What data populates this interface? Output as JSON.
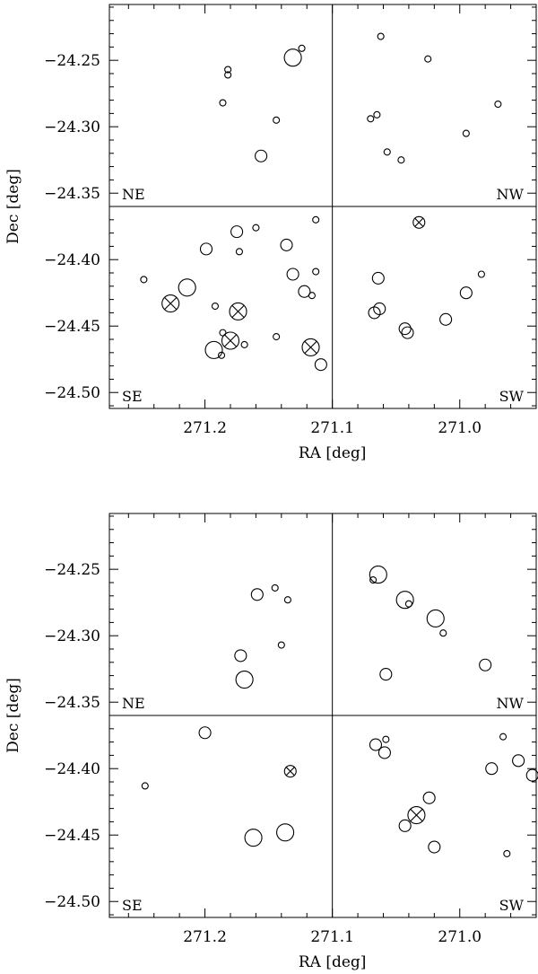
{
  "chart_data": [
    {
      "type": "scatter",
      "title": "",
      "xlabel": "RA [deg]",
      "ylabel": "Dec [deg]",
      "xlim": [
        271.275,
        270.94
      ],
      "ylim": [
        -24.512,
        -24.208
      ],
      "x_ticklabels": [
        {
          "value": 271.2,
          "label": "271.2"
        },
        {
          "value": 271.1,
          "label": "271.1"
        },
        {
          "value": 271.0,
          "label": "271.0"
        }
      ],
      "y_ticklabels": [
        {
          "value": -24.25,
          "label": "−24.25"
        },
        {
          "value": -24.3,
          "label": "−24.30"
        },
        {
          "value": -24.35,
          "label": "−24.35"
        },
        {
          "value": -24.4,
          "label": "−24.40"
        },
        {
          "value": -24.45,
          "label": "−24.45"
        },
        {
          "value": -24.5,
          "label": "−24.50"
        }
      ],
      "divider": {
        "ra": 271.1,
        "dec": -24.36
      },
      "quadrants": {
        "ne": "NE",
        "nw": "NW",
        "se": "SE",
        "sw": "SW"
      },
      "points": [
        {
          "ra": 271.131,
          "dec": -24.248,
          "size": "large"
        },
        {
          "ra": 271.124,
          "dec": -24.241,
          "size": "small"
        },
        {
          "ra": 271.182,
          "dec": -24.257,
          "size": "small"
        },
        {
          "ra": 271.182,
          "dec": -24.261,
          "size": "small"
        },
        {
          "ra": 271.186,
          "dec": -24.282,
          "size": "small"
        },
        {
          "ra": 271.144,
          "dec": -24.295,
          "size": "small"
        },
        {
          "ra": 271.156,
          "dec": -24.322,
          "size": "medium"
        },
        {
          "ra": 271.062,
          "dec": -24.232,
          "size": "small"
        },
        {
          "ra": 271.025,
          "dec": -24.249,
          "size": "small"
        },
        {
          "ra": 271.07,
          "dec": -24.294,
          "size": "small"
        },
        {
          "ra": 271.065,
          "dec": -24.291,
          "size": "small"
        },
        {
          "ra": 271.057,
          "dec": -24.319,
          "size": "small"
        },
        {
          "ra": 271.046,
          "dec": -24.325,
          "size": "small"
        },
        {
          "ra": 270.995,
          "dec": -24.305,
          "size": "small"
        },
        {
          "ra": 270.97,
          "dec": -24.283,
          "size": "small"
        },
        {
          "ra": 271.113,
          "dec": -24.37,
          "size": "small"
        },
        {
          "ra": 271.175,
          "dec": -24.379,
          "size": "medium"
        },
        {
          "ra": 271.16,
          "dec": -24.376,
          "size": "small"
        },
        {
          "ra": 271.199,
          "dec": -24.392,
          "size": "medium"
        },
        {
          "ra": 271.173,
          "dec": -24.394,
          "size": "small"
        },
        {
          "ra": 271.136,
          "dec": -24.389,
          "size": "medium"
        },
        {
          "ra": 271.131,
          "dec": -24.411,
          "size": "medium"
        },
        {
          "ra": 271.113,
          "dec": -24.409,
          "size": "small"
        },
        {
          "ra": 271.248,
          "dec": -24.415,
          "size": "small"
        },
        {
          "ra": 271.214,
          "dec": -24.421,
          "size": "large"
        },
        {
          "ra": 271.122,
          "dec": -24.424,
          "size": "medium"
        },
        {
          "ra": 271.116,
          "dec": -24.427,
          "size": "small"
        },
        {
          "ra": 271.227,
          "dec": -24.433,
          "size": "large",
          "crossed": true
        },
        {
          "ra": 271.192,
          "dec": -24.435,
          "size": "small"
        },
        {
          "ra": 271.174,
          "dec": -24.439,
          "size": "large",
          "crossed": true
        },
        {
          "ra": 271.144,
          "dec": -24.458,
          "size": "small"
        },
        {
          "ra": 271.186,
          "dec": -24.455,
          "size": "small"
        },
        {
          "ra": 271.18,
          "dec": -24.461,
          "size": "large",
          "crossed": true
        },
        {
          "ra": 271.169,
          "dec": -24.464,
          "size": "small"
        },
        {
          "ra": 271.193,
          "dec": -24.468,
          "size": "large"
        },
        {
          "ra": 271.187,
          "dec": -24.472,
          "size": "small"
        },
        {
          "ra": 271.117,
          "dec": -24.466,
          "size": "large",
          "crossed": true
        },
        {
          "ra": 271.109,
          "dec": -24.479,
          "size": "medium"
        },
        {
          "ra": 271.032,
          "dec": -24.372,
          "size": "medium",
          "crossed": true
        },
        {
          "ra": 271.064,
          "dec": -24.414,
          "size": "medium"
        },
        {
          "ra": 270.983,
          "dec": -24.411,
          "size": "small"
        },
        {
          "ra": 270.995,
          "dec": -24.425,
          "size": "medium"
        },
        {
          "ra": 271.063,
          "dec": -24.437,
          "size": "medium"
        },
        {
          "ra": 271.067,
          "dec": -24.44,
          "size": "medium"
        },
        {
          "ra": 271.011,
          "dec": -24.445,
          "size": "medium"
        },
        {
          "ra": 271.043,
          "dec": -24.452,
          "size": "medium"
        },
        {
          "ra": 271.041,
          "dec": -24.455,
          "size": "medium"
        }
      ]
    },
    {
      "type": "scatter",
      "title": "",
      "xlabel": "RA [deg]",
      "ylabel": "Dec [deg]",
      "xlim": [
        271.275,
        270.94
      ],
      "ylim": [
        -24.512,
        -24.208
      ],
      "x_ticklabels": [
        {
          "value": 271.2,
          "label": "271.2"
        },
        {
          "value": 271.1,
          "label": "271.1"
        },
        {
          "value": 271.0,
          "label": "271.0"
        }
      ],
      "y_ticklabels": [
        {
          "value": -24.25,
          "label": "−24.25"
        },
        {
          "value": -24.3,
          "label": "−24.30"
        },
        {
          "value": -24.35,
          "label": "−24.35"
        },
        {
          "value": -24.4,
          "label": "−24.40"
        },
        {
          "value": -24.45,
          "label": "−24.45"
        },
        {
          "value": -24.5,
          "label": "−24.50"
        }
      ],
      "divider": {
        "ra": 271.1,
        "dec": -24.36
      },
      "quadrants": {
        "ne": "NE",
        "nw": "NW",
        "se": "SE",
        "sw": "SW"
      },
      "points": [
        {
          "ra": 271.159,
          "dec": -24.269,
          "size": "medium"
        },
        {
          "ra": 271.145,
          "dec": -24.264,
          "size": "small"
        },
        {
          "ra": 271.135,
          "dec": -24.273,
          "size": "small"
        },
        {
          "ra": 271.14,
          "dec": -24.307,
          "size": "small"
        },
        {
          "ra": 271.172,
          "dec": -24.315,
          "size": "medium"
        },
        {
          "ra": 271.169,
          "dec": -24.333,
          "size": "large"
        },
        {
          "ra": 271.068,
          "dec": -24.258,
          "size": "small"
        },
        {
          "ra": 271.064,
          "dec": -24.254,
          "size": "large"
        },
        {
          "ra": 271.043,
          "dec": -24.273,
          "size": "large"
        },
        {
          "ra": 271.04,
          "dec": -24.276,
          "size": "small"
        },
        {
          "ra": 271.019,
          "dec": -24.287,
          "size": "large"
        },
        {
          "ra": 271.013,
          "dec": -24.298,
          "size": "small"
        },
        {
          "ra": 270.98,
          "dec": -24.322,
          "size": "medium"
        },
        {
          "ra": 271.058,
          "dec": -24.329,
          "size": "medium"
        },
        {
          "ra": 271.2,
          "dec": -24.373,
          "size": "medium"
        },
        {
          "ra": 271.247,
          "dec": -24.413,
          "size": "small"
        },
        {
          "ra": 271.133,
          "dec": -24.402,
          "size": "medium",
          "crossed": true
        },
        {
          "ra": 271.162,
          "dec": -24.452,
          "size": "large"
        },
        {
          "ra": 271.137,
          "dec": -24.448,
          "size": "large"
        },
        {
          "ra": 271.066,
          "dec": -24.382,
          "size": "medium"
        },
        {
          "ra": 271.058,
          "dec": -24.378,
          "size": "small"
        },
        {
          "ra": 271.059,
          "dec": -24.388,
          "size": "medium"
        },
        {
          "ra": 270.966,
          "dec": -24.376,
          "size": "small"
        },
        {
          "ra": 270.954,
          "dec": -24.394,
          "size": "medium"
        },
        {
          "ra": 270.975,
          "dec": -24.4,
          "size": "medium"
        },
        {
          "ra": 270.943,
          "dec": -24.405,
          "size": "medium"
        },
        {
          "ra": 271.024,
          "dec": -24.422,
          "size": "medium"
        },
        {
          "ra": 271.034,
          "dec": -24.435,
          "size": "large",
          "crossed": true
        },
        {
          "ra": 271.043,
          "dec": -24.443,
          "size": "medium"
        },
        {
          "ra": 271.02,
          "dec": -24.459,
          "size": "medium"
        },
        {
          "ra": 270.963,
          "dec": -24.464,
          "size": "small"
        }
      ]
    }
  ]
}
